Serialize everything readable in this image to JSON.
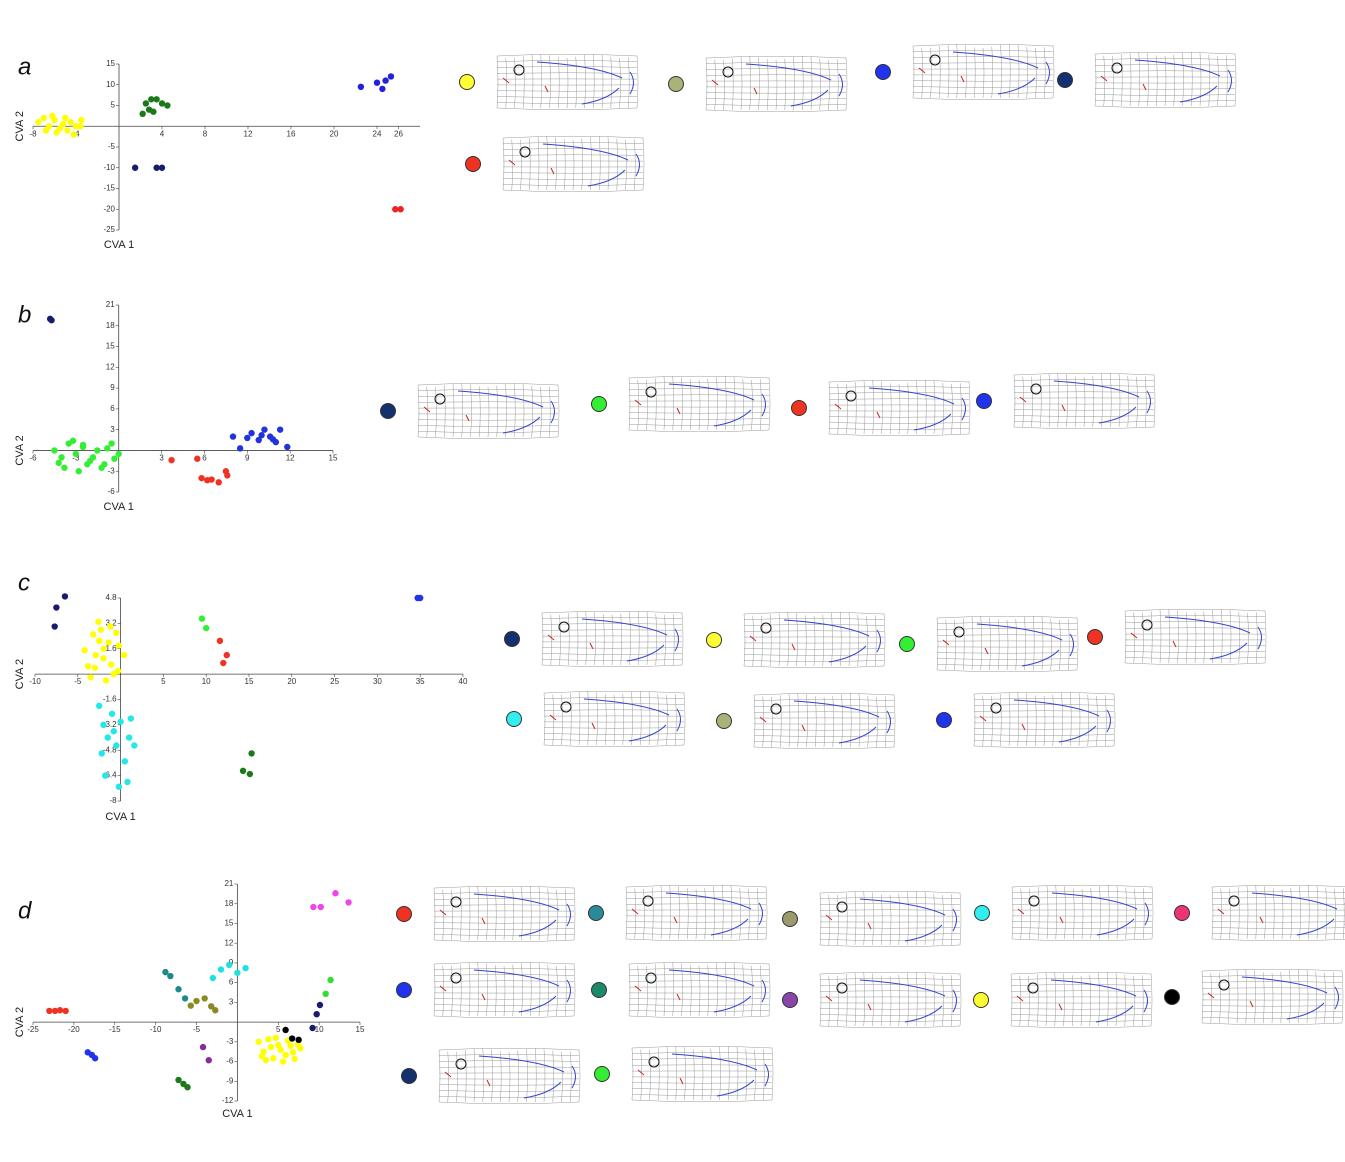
{
  "chart_data": [
    {
      "type": "scatter",
      "panel": "a",
      "x_label": "CVA 1",
      "y_label": "CVA 2",
      "xlim": [
        -8,
        28
      ],
      "ylim": [
        -25,
        15
      ],
      "xticks": [
        -8,
        -4,
        4,
        8,
        12,
        16,
        20,
        24,
        26
      ],
      "yticks": [
        15,
        10,
        5,
        -5,
        -10,
        -15,
        -20,
        -25
      ],
      "series": [
        {
          "color": "#ffff00",
          "x": [
            -7.5,
            -7,
            -6.5,
            -6,
            -5.5,
            -5,
            -4.5,
            -4,
            -3.5,
            -6.8,
            -5.8,
            -4.8,
            -6.2,
            -5.2,
            -4.2,
            -3.6
          ],
          "y": [
            1,
            2,
            0,
            1.5,
            -0.5,
            2,
            1,
            0,
            1.5,
            -1,
            -1.5,
            -1,
            2.5,
            0.5,
            -2,
            0
          ]
        },
        {
          "color": "#1a7a1a",
          "x": [
            2.2,
            2.5,
            3,
            3.5,
            4,
            4.5,
            3.2,
            2.8
          ],
          "y": [
            3,
            5.5,
            6.5,
            6.5,
            5.5,
            5,
            3.5,
            4
          ]
        },
        {
          "color": "#1a1a6e",
          "x": [
            1.5,
            3.5,
            4
          ],
          "y": [
            -10,
            -10,
            -10
          ]
        },
        {
          "color": "#2222dd",
          "x": [
            22.5,
            24,
            24.5,
            24.8,
            25.3
          ],
          "y": [
            9.5,
            10.5,
            9,
            11,
            12
          ]
        },
        {
          "color": "#ee2222",
          "x": [
            25.7,
            26.2
          ],
          "y": [
            -20,
            -20
          ]
        }
      ],
      "deformation_grid_colors": [
        "#ffff33",
        "#a9b377",
        "#2233ee",
        "#15306e",
        "#ee3322"
      ]
    },
    {
      "type": "scatter",
      "panel": "b",
      "x_label": "CVA 1",
      "y_label": "CVA 2",
      "xlim": [
        -6,
        15
      ],
      "ylim": [
        -6,
        21
      ],
      "xticks": [
        -6,
        -3,
        3,
        6,
        9,
        12,
        15
      ],
      "yticks": [
        21,
        18,
        15,
        12,
        9,
        6,
        3,
        -3,
        -6
      ],
      "series": [
        {
          "color": "#1a1a6e",
          "x": [
            -4.8,
            -4.7
          ],
          "y": [
            19,
            18.8
          ]
        },
        {
          "color": "#33ee33",
          "x": [
            -4.5,
            -4,
            -3.5,
            -3,
            -2.5,
            -2,
            -1.5,
            -1,
            -0.5,
            0,
            -3.8,
            -2.8,
            -1.8,
            -0.8,
            -3.2,
            -2.2,
            -1.2,
            -4.2,
            -2.5,
            -0.3
          ],
          "y": [
            0,
            -1,
            1,
            -0.5,
            0.5,
            -1.5,
            0,
            -2,
            1,
            -0.5,
            -2.5,
            -3,
            -1,
            0.3,
            1.4,
            -2,
            -2.5,
            -1.8,
            0.8,
            -1.2
          ]
        },
        {
          "color": "#ee3322",
          "x": [
            3.7,
            5.5,
            5.8,
            6.5,
            7,
            7.5,
            7.6,
            6.2
          ],
          "y": [
            -1.4,
            -1.2,
            -4,
            -4.2,
            -4.6,
            -3,
            -3.6,
            -4.3
          ]
        },
        {
          "color": "#2233dd",
          "x": [
            8,
            8.5,
            9.3,
            9.8,
            10.2,
            10.6,
            11,
            11.3,
            11.8,
            10,
            9,
            10.8
          ],
          "y": [
            2,
            0.3,
            2.5,
            1.5,
            3,
            2,
            1.2,
            3,
            0.5,
            2.2,
            1.8,
            1.6
          ]
        }
      ],
      "deformation_grid_colors": [
        "#15306e",
        "#33ee33",
        "#ee3322",
        "#2233ee"
      ]
    },
    {
      "type": "scatter",
      "panel": "c",
      "x_label": "CVA 1",
      "y_label": "CVA 2",
      "xlim": [
        -10,
        40
      ],
      "ylim": [
        -8,
        4.8
      ],
      "xticks": [
        -10,
        -5,
        5,
        10,
        15,
        20,
        25,
        30,
        35,
        40
      ],
      "yticks": [
        4.8,
        3.2,
        1.6,
        -1.6,
        -3.2,
        -4.8,
        -6.4,
        -8
      ],
      "series": [
        {
          "color": "#1a1a6e",
          "x": [
            -6.5,
            -7.5,
            -7.7
          ],
          "y": [
            4.9,
            4.2,
            3.0
          ]
        },
        {
          "color": "#ffff00",
          "x": [
            -4.2,
            -3.8,
            -3.2,
            -2.6,
            -2,
            -1.4,
            -0.8,
            -0.2,
            0.4,
            -3.5,
            -2.3,
            -1.1,
            -2.9,
            -1.7,
            -0.5,
            -2,
            -1.2,
            -3,
            -0.3,
            -2.5
          ],
          "y": [
            1.5,
            0.5,
            2.5,
            3.3,
            1,
            2,
            0,
            1.8,
            1.2,
            -0.2,
            2.8,
            0.6,
            1.2,
            -0.4,
            2.6,
            1.6,
            3,
            0.4,
            0.2,
            2.1
          ]
        },
        {
          "color": "#33ee33",
          "x": [
            9.5,
            10
          ],
          "y": [
            3.5,
            2.9
          ]
        },
        {
          "color": "#ee3322",
          "x": [
            11.6,
            12.4,
            12
          ],
          "y": [
            2.1,
            1.2,
            0.7
          ]
        },
        {
          "color": "#2233ee",
          "x": [
            34.7,
            35
          ],
          "y": [
            4.8,
            4.8
          ]
        },
        {
          "color": "#22e8e8",
          "x": [
            -2.5,
            -2,
            -1.5,
            -1,
            -0.5,
            0,
            0.5,
            1,
            1.6,
            -1.8,
            -0.2,
            0.8,
            -2.2,
            1.2,
            -0.8
          ],
          "y": [
            -2,
            -3.2,
            -4,
            -2.5,
            -4.5,
            -3,
            -5.5,
            -4,
            -4.5,
            -6.4,
            -7.1,
            -6.8,
            -5,
            -2.8,
            -3.6
          ]
        },
        {
          "color": "#1a7a1a",
          "x": [
            15.3,
            14.3,
            15.1
          ],
          "y": [
            -5,
            -6.1,
            -6.3
          ]
        }
      ],
      "deformation_grid_colors": [
        "#15306e",
        "#ffff33",
        "#33ee33",
        "#ee3322",
        "#33eeee",
        "#a9b377",
        "#2233ee"
      ]
    },
    {
      "type": "scatter",
      "panel": "d",
      "x_label": "CVA 1",
      "y_label": "CVA 2",
      "xlim": [
        -25,
        15
      ],
      "ylim": [
        -12,
        21
      ],
      "xticks": [
        -25,
        -20,
        -15,
        -10,
        -5,
        5,
        10,
        15
      ],
      "yticks": [
        21,
        18,
        15,
        12,
        9,
        6,
        3,
        -3,
        -6,
        -9,
        -12
      ],
      "series": [
        {
          "color": "#ee3322",
          "x": [
            -23,
            -22.3,
            -21.7,
            -21
          ],
          "y": [
            1.7,
            1.7,
            1.8,
            1.7
          ]
        },
        {
          "color": "#2233ee",
          "x": [
            -18.3,
            -17.8,
            -17.4
          ],
          "y": [
            -4.6,
            -5,
            -5.5
          ]
        },
        {
          "color": "#1a8a8a",
          "x": [
            -8.8,
            -8.2,
            -7.2,
            -6.4
          ],
          "y": [
            7.6,
            7,
            5,
            3.6
          ]
        },
        {
          "color": "#8a8a22",
          "x": [
            -5.7,
            -5,
            -4,
            -3.2,
            -2.7
          ],
          "y": [
            2.5,
            3.2,
            3.6,
            2.4,
            1.8
          ]
        },
        {
          "color": "#22e0e0",
          "x": [
            -3,
            -2,
            -1,
            0,
            1
          ],
          "y": [
            6.7,
            8,
            8.7,
            7.5,
            8.2
          ]
        },
        {
          "color": "#8a2a9a",
          "x": [
            -4.2,
            -3.5
          ],
          "y": [
            -3.8,
            -5.8
          ]
        },
        {
          "color": "#1a7a1a",
          "x": [
            -7.2,
            -6.6,
            -6.1
          ],
          "y": [
            -8.8,
            -9.4,
            -9.9
          ]
        },
        {
          "color": "#ffff00",
          "x": [
            2.6,
            3.2,
            3.8,
            4.4,
            5,
            5.6,
            6.2,
            6.8,
            7.4,
            3.5,
            4.7,
            5.9,
            7,
            4.1,
            5.3,
            6.5,
            3,
            7.7
          ],
          "y": [
            -3,
            -4.5,
            -2.6,
            -5.5,
            -3.5,
            -6,
            -2.8,
            -4.6,
            -3.4,
            -5.8,
            -2.4,
            -5,
            -5.6,
            -3.8,
            -4.2,
            -3.6,
            -5.2,
            -4
          ]
        },
        {
          "color": "#000000",
          "x": [
            5.9,
            6.7,
            7.5
          ],
          "y": [
            -1.2,
            -2.5,
            -2.7
          ]
        },
        {
          "color": "#1a1a6e",
          "x": [
            9.2,
            9.7,
            10.1
          ],
          "y": [
            -0.9,
            1.2,
            2.6
          ]
        },
        {
          "color": "#33dd33",
          "x": [
            10.8,
            11.4
          ],
          "y": [
            4.3,
            6.4
          ]
        },
        {
          "color": "#ee44ee",
          "x": [
            9.3,
            10.2,
            12,
            13.6
          ],
          "y": [
            17.5,
            17.5,
            19.6,
            18.2
          ]
        }
      ],
      "deformation_grid_colors": [
        "#ee3322",
        "#2a8a9a",
        "#9a9a6a",
        "#33eeee",
        "#ee3377",
        "#2233ee",
        "#1a8a6a",
        "#8a44aa",
        "#ffff33",
        "#000000",
        "#15306e",
        "#33ee33"
      ]
    }
  ]
}
